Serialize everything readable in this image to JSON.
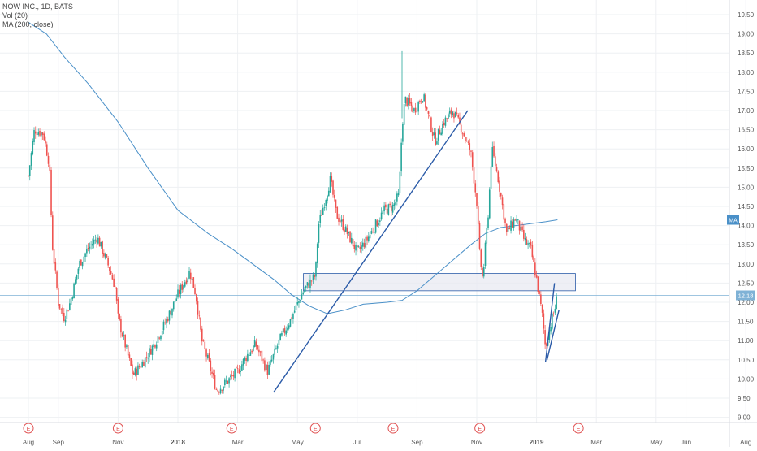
{
  "legend": {
    "symbol": "NOW INC., 1D, BATS",
    "volume": "Vol (20)",
    "ma": "MA (200, close)"
  },
  "colors": {
    "up": "#26a69a",
    "down": "#ef5350",
    "ma_line": "#4a90c8",
    "trendline": "#2b5ba8",
    "price_line": "#7fb2d6",
    "box_fill": "#e8eaf2",
    "box_stroke": "#2b5ba8",
    "earnings": "#e05050"
  },
  "chart_data": {
    "type": "candlestick",
    "symbol": "NOW INC.",
    "interval": "1D",
    "exchange": "BATS",
    "y_axis": {
      "min": 9.0,
      "max": 19.5,
      "ticks": [
        "19.50",
        "19.00",
        "18.50",
        "18.00",
        "17.50",
        "17.00",
        "16.50",
        "16.00",
        "15.50",
        "15.00",
        "14.50",
        "14.00",
        "13.50",
        "13.00",
        "12.50",
        "12.00",
        "11.50",
        "11.00",
        "10.50",
        "10.00",
        "9.50",
        "9.00"
      ]
    },
    "x_axis": {
      "labels": [
        "Aug",
        "Sep",
        "Nov",
        "2018",
        "Mar",
        "May",
        "Jul",
        "Sep",
        "Nov",
        "2019",
        "Mar",
        "May",
        "Jun",
        "Aug"
      ],
      "label_months": [
        0,
        1,
        3,
        5,
        7,
        9,
        11,
        13,
        15,
        17,
        19,
        21,
        22,
        24
      ]
    },
    "current_price": {
      "value": "12.18",
      "price": 12.18
    },
    "ma_tag": "MA",
    "ma_last": 14.15,
    "earnings_marker": "E",
    "earnings_months": [
      0,
      3,
      6.8,
      9.6,
      12.2,
      15.1,
      18.4
    ],
    "price_path": [
      [
        0,
        15.3
      ],
      [
        0.2,
        16.5
      ],
      [
        0.5,
        16.4
      ],
      [
        0.7,
        15.6
      ],
      [
        0.8,
        13.5
      ],
      [
        1.0,
        12.0
      ],
      [
        1.2,
        11.6
      ],
      [
        1.4,
        12.0
      ],
      [
        1.7,
        13.0
      ],
      [
        2.0,
        13.4
      ],
      [
        2.3,
        13.7
      ],
      [
        2.5,
        13.3
      ],
      [
        2.7,
        12.9
      ],
      [
        2.9,
        12.4
      ],
      [
        3.0,
        11.6
      ],
      [
        3.2,
        11.0
      ],
      [
        3.5,
        10.1
      ],
      [
        3.8,
        10.4
      ],
      [
        4.2,
        10.9
      ],
      [
        4.6,
        11.5
      ],
      [
        5.0,
        12.2
      ],
      [
        5.4,
        12.8
      ],
      [
        5.6,
        12.2
      ],
      [
        5.8,
        11.0
      ],
      [
        6.0,
        10.5
      ],
      [
        6.3,
        9.7
      ],
      [
        6.6,
        9.9
      ],
      [
        7.0,
        10.2
      ],
      [
        7.3,
        10.6
      ],
      [
        7.6,
        10.9
      ],
      [
        8.0,
        10.2
      ],
      [
        8.4,
        11.0
      ],
      [
        8.8,
        11.6
      ],
      [
        9.2,
        12.3
      ],
      [
        9.6,
        12.7
      ],
      [
        9.7,
        14.0
      ],
      [
        9.9,
        14.6
      ],
      [
        10.1,
        15.2
      ],
      [
        10.3,
        14.3
      ],
      [
        10.6,
        13.9
      ],
      [
        11.0,
        13.3
      ],
      [
        11.3,
        13.6
      ],
      [
        11.6,
        14.0
      ],
      [
        11.9,
        14.4
      ],
      [
        12.2,
        14.5
      ],
      [
        12.4,
        14.8
      ],
      [
        12.5,
        16.6
      ],
      [
        12.6,
        17.3
      ],
      [
        12.9,
        17.0
      ],
      [
        13.2,
        17.4
      ],
      [
        13.4,
        16.8
      ],
      [
        13.6,
        16.2
      ],
      [
        13.9,
        16.7
      ],
      [
        14.2,
        17.0
      ],
      [
        14.5,
        16.5
      ],
      [
        14.8,
        15.9
      ],
      [
        15.0,
        14.6
      ],
      [
        15.1,
        13.2
      ],
      [
        15.2,
        12.6
      ],
      [
        15.4,
        14.5
      ],
      [
        15.5,
        16.0
      ],
      [
        15.7,
        15.3
      ],
      [
        16.0,
        13.8
      ],
      [
        16.3,
        14.2
      ],
      [
        16.6,
        13.6
      ],
      [
        16.8,
        13.4
      ],
      [
        17.0,
        12.6
      ],
      [
        17.2,
        11.6
      ],
      [
        17.3,
        10.8
      ],
      [
        17.4,
        11.2
      ],
      [
        17.6,
        11.8
      ],
      [
        17.7,
        12.18
      ]
    ],
    "ma200_path": [
      [
        0,
        19.3
      ],
      [
        0.6,
        19.0
      ],
      [
        1.2,
        18.4
      ],
      [
        2.0,
        17.7
      ],
      [
        3.0,
        16.7
      ],
      [
        4.0,
        15.5
      ],
      [
        5.0,
        14.4
      ],
      [
        6.0,
        13.8
      ],
      [
        6.8,
        13.4
      ],
      [
        7.5,
        13.0
      ],
      [
        8.2,
        12.6
      ],
      [
        8.8,
        12.2
      ],
      [
        9.4,
        11.9
      ],
      [
        10.0,
        11.7
      ],
      [
        10.6,
        11.8
      ],
      [
        11.2,
        11.95
      ],
      [
        12.0,
        12.0
      ],
      [
        12.5,
        12.05
      ],
      [
        13.0,
        12.3
      ],
      [
        13.6,
        12.7
      ],
      [
        14.2,
        13.1
      ],
      [
        14.8,
        13.5
      ],
      [
        15.3,
        13.8
      ],
      [
        15.8,
        13.95
      ],
      [
        16.3,
        14.0
      ],
      [
        16.8,
        14.05
      ],
      [
        17.3,
        14.1
      ],
      [
        17.7,
        14.15
      ]
    ],
    "trendlines": [
      {
        "from": [
          8.2,
          9.65
        ],
        "to": [
          14.7,
          17.0
        ]
      },
      {
        "from": [
          17.3,
          10.45
        ],
        "to": [
          17.6,
          12.5
        ]
      },
      {
        "from": [
          17.35,
          10.5
        ],
        "to": [
          17.75,
          11.8
        ]
      }
    ],
    "zone": {
      "x_from": 9.2,
      "x_to": 18.3,
      "y_low": 12.3,
      "y_high": 12.75
    },
    "grid": true
  }
}
